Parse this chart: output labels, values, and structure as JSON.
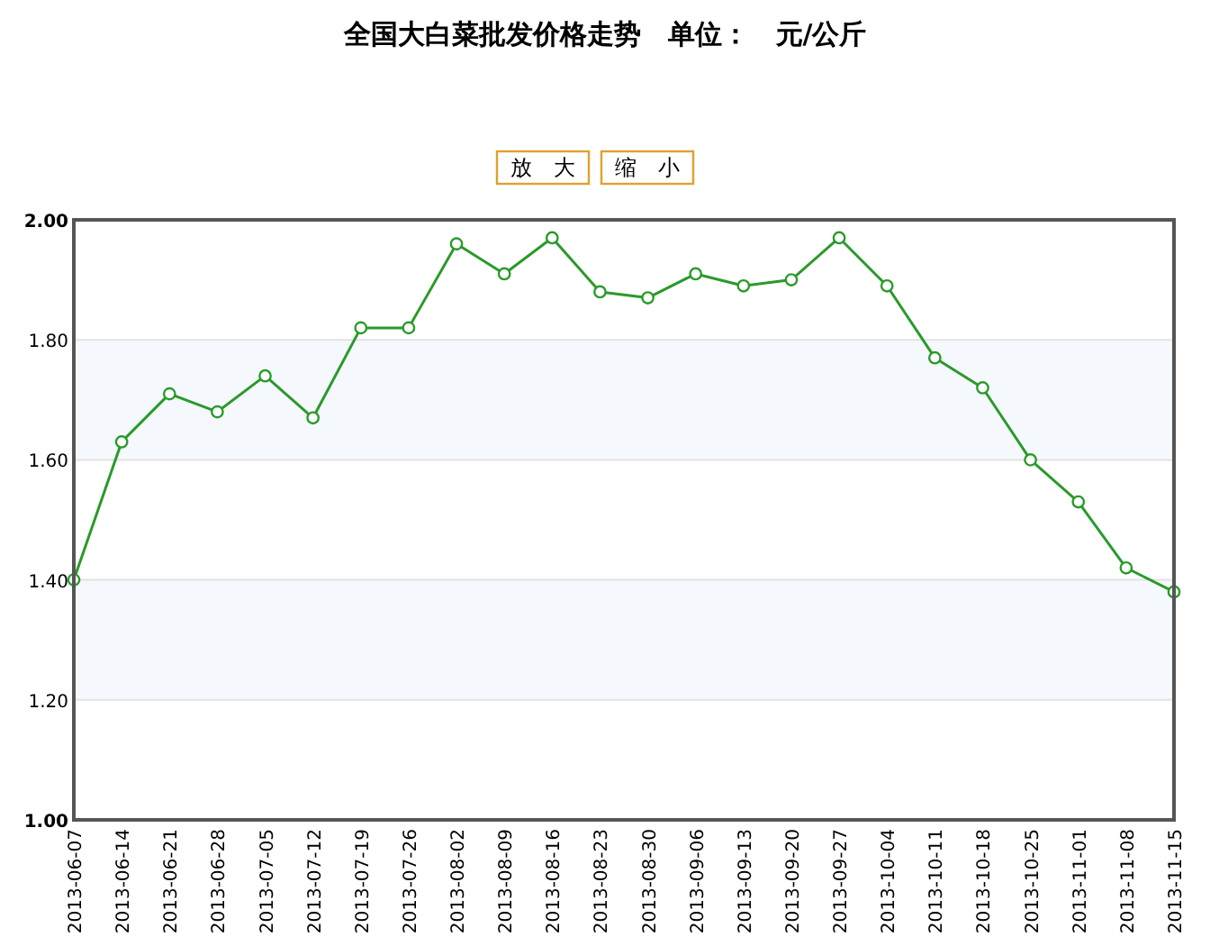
{
  "chart_data": {
    "type": "line",
    "title": "全国大白菜批发价格走势　单位：　元/公斤",
    "categories": [
      "2013-06-07",
      "2013-06-14",
      "2013-06-21",
      "2013-06-28",
      "2013-07-05",
      "2013-07-12",
      "2013-07-19",
      "2013-07-26",
      "2013-08-02",
      "2013-08-09",
      "2013-08-16",
      "2013-08-23",
      "2013-08-30",
      "2013-09-06",
      "2013-09-13",
      "2013-09-20",
      "2013-09-27",
      "2013-10-04",
      "2013-10-11",
      "2013-10-18",
      "2013-10-25",
      "2013-11-01",
      "2013-11-08",
      "2013-11-15"
    ],
    "series": [
      {
        "color": "#2a9a2a",
        "values": [
          1.4,
          1.63,
          1.71,
          1.68,
          1.74,
          1.67,
          1.82,
          1.82,
          1.96,
          1.91,
          1.97,
          1.88,
          1.87,
          1.91,
          1.89,
          1.9,
          1.97,
          1.89,
          1.77,
          1.72,
          1.6,
          1.53,
          1.42,
          1.38
        ]
      }
    ],
    "ylim": [
      1.0,
      2.0
    ],
    "yticks": [
      {
        "value": 1.0,
        "label": "1.00"
      },
      {
        "value": 1.2,
        "label": "1.20"
      },
      {
        "value": 1.4,
        "label": "1.40"
      },
      {
        "value": 1.6,
        "label": "1.60"
      },
      {
        "value": 1.8,
        "label": "1.80"
      },
      {
        "value": 2.0,
        "label": "2.00"
      }
    ],
    "grid": "y",
    "marker": "circle",
    "annotations": [
      "放　大",
      "缩　小"
    ]
  }
}
